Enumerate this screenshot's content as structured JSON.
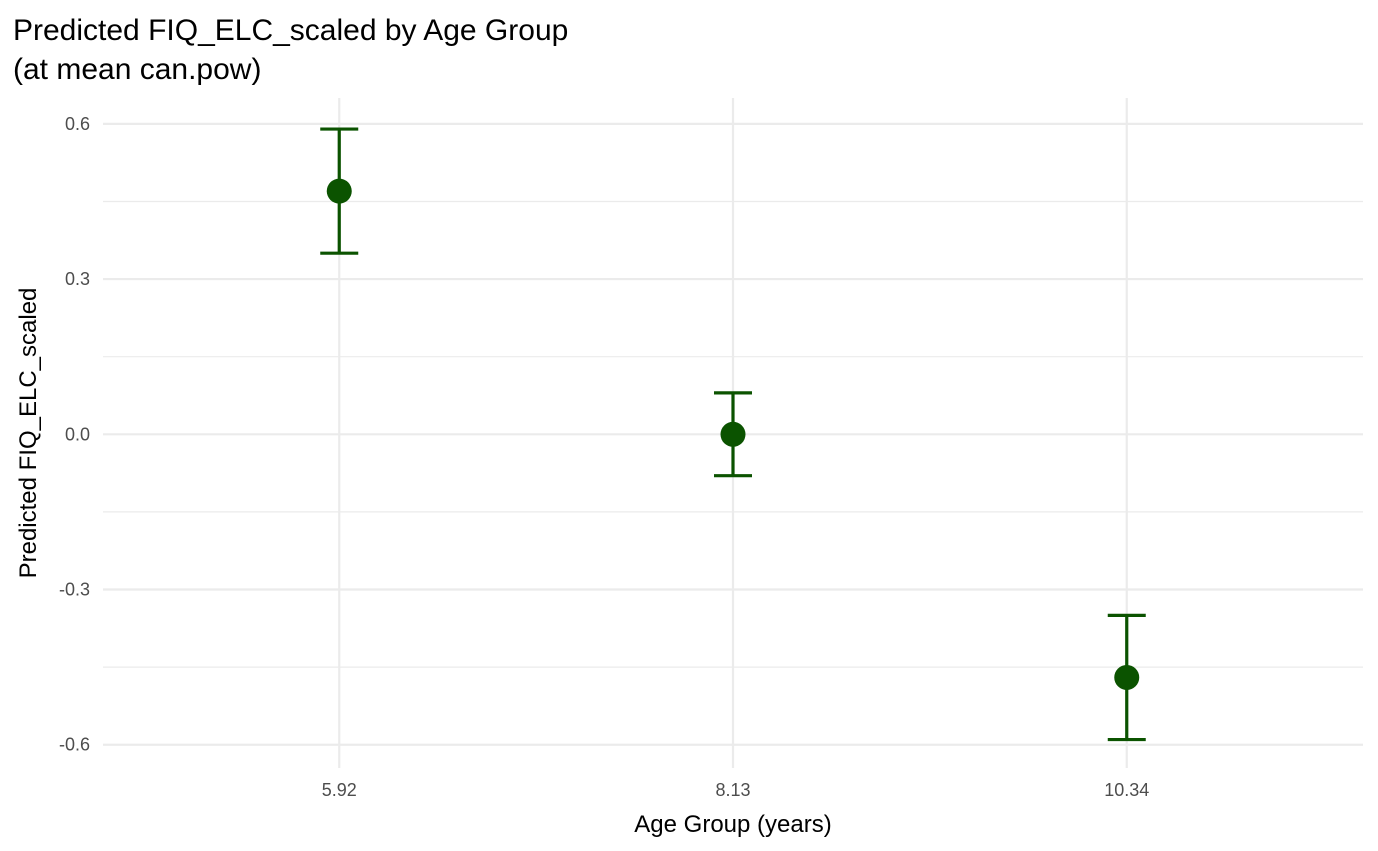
{
  "chart_data": {
    "type": "scatter",
    "title_line1": "Predicted FIQ_ELC_scaled by Age Group",
    "title_line2": "(at mean can.pow)",
    "xlabel": "Age Group (years)",
    "ylabel": "Predicted FIQ_ELC_scaled",
    "categories": [
      "5.92",
      "8.13",
      "10.34"
    ],
    "y_ticks": [
      0.6,
      0.3,
      0.0,
      -0.3,
      -0.6
    ],
    "y_tick_labels": [
      "0.6",
      "0.3",
      "0.0",
      "-0.3",
      "-0.6"
    ],
    "ylim": [
      -0.645,
      0.65
    ],
    "grid": true,
    "legend": "none",
    "series": [
      {
        "values": [
          0.47,
          0.0,
          -0.47
        ],
        "lower": [
          0.35,
          -0.08,
          -0.59
        ],
        "upper": [
          0.59,
          0.08,
          -0.35
        ],
        "color": "#0b5300"
      }
    ],
    "grid_color": "#ebebeb"
  }
}
